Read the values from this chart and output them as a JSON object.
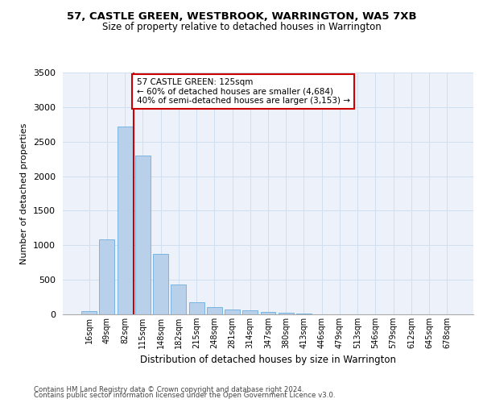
{
  "title1": "57, CASTLE GREEN, WESTBROOK, WARRINGTON, WA5 7XB",
  "title2": "Size of property relative to detached houses in Warrington",
  "xlabel": "Distribution of detached houses by size in Warrington",
  "ylabel": "Number of detached properties",
  "categories": [
    "16sqm",
    "49sqm",
    "82sqm",
    "115sqm",
    "148sqm",
    "182sqm",
    "215sqm",
    "248sqm",
    "281sqm",
    "314sqm",
    "347sqm",
    "380sqm",
    "413sqm",
    "446sqm",
    "479sqm",
    "513sqm",
    "546sqm",
    "579sqm",
    "612sqm",
    "645sqm",
    "678sqm"
  ],
  "values": [
    50,
    1090,
    2720,
    2300,
    880,
    430,
    170,
    100,
    70,
    55,
    30,
    20,
    10,
    5,
    3,
    2,
    1,
    1,
    0,
    0,
    0
  ],
  "bar_color": "#b8d0ea",
  "bar_edge_color": "#6aaee0",
  "grid_color": "#d0dff0",
  "bg_color": "#edf2fa",
  "vline_color": "#cc0000",
  "vline_pos": 2.5,
  "annotation_text": "57 CASTLE GREEN: 125sqm\n← 60% of detached houses are smaller (4,684)\n40% of semi-detached houses are larger (3,153) →",
  "annotation_box_facecolor": "#ffffff",
  "annotation_box_edgecolor": "#cc0000",
  "ylim": [
    0,
    3500
  ],
  "yticks": [
    0,
    500,
    1000,
    1500,
    2000,
    2500,
    3000,
    3500
  ],
  "footer1": "Contains HM Land Registry data © Crown copyright and database right 2024.",
  "footer2": "Contains public sector information licensed under the Open Government Licence v3.0."
}
